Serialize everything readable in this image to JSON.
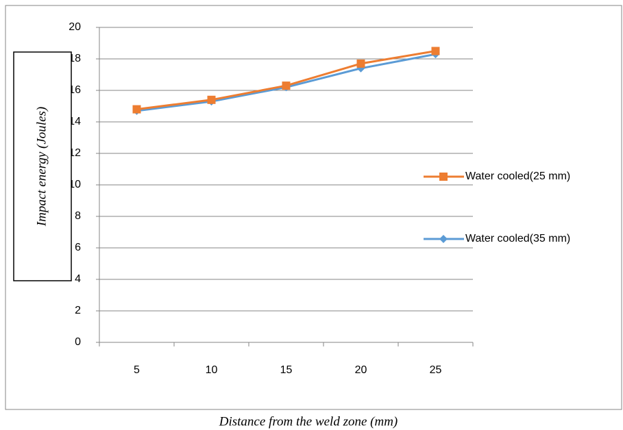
{
  "chart_data": {
    "type": "line",
    "x_label": "Distance from the weld zone (mm)",
    "y_label": "Impact energy (Joules)",
    "categories": [
      5,
      10,
      15,
      20,
      25
    ],
    "series": [
      {
        "name": "Water cooled(25 mm)",
        "color": "#ed7d31",
        "marker": "square",
        "values": [
          14.8,
          15.4,
          16.3,
          17.7,
          18.5
        ]
      },
      {
        "name": "Water cooled(35 mm)",
        "color": "#5b9bd5",
        "marker": "diamond",
        "values": [
          14.7,
          15.3,
          16.2,
          17.4,
          18.3
        ]
      }
    ],
    "ylim": [
      0,
      20
    ],
    "yticks": [
      0,
      2,
      4,
      6,
      8,
      10,
      12,
      14,
      16,
      18,
      20
    ],
    "grid": true,
    "legend": "right"
  }
}
